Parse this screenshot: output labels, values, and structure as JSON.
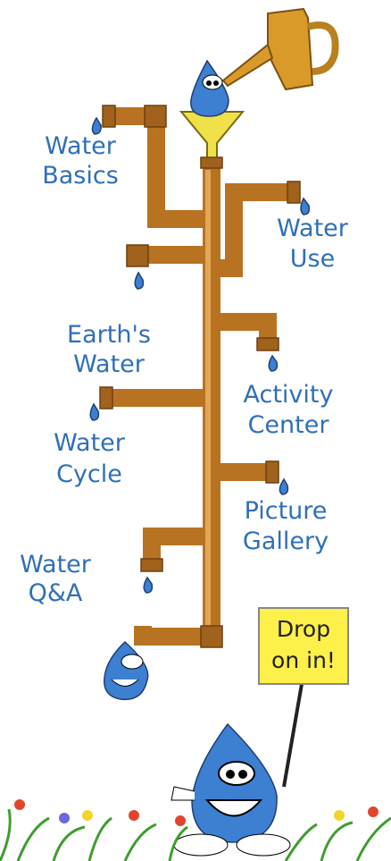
{
  "menu": [
    {
      "lines": [
        "Water",
        "Basics"
      ]
    },
    {
      "lines": [
        "Water",
        "Use"
      ]
    },
    {
      "lines": [
        "Earth's",
        "Water"
      ]
    },
    {
      "lines": [
        "Activity",
        "Center"
      ]
    },
    {
      "lines": [
        "Water",
        "Cycle"
      ]
    },
    {
      "lines": [
        "Picture",
        "Gallery"
      ]
    },
    {
      "lines": [
        "Water",
        "Q&A"
      ]
    }
  ],
  "sign": {
    "lines": [
      "Drop",
      "on in!"
    ]
  }
}
